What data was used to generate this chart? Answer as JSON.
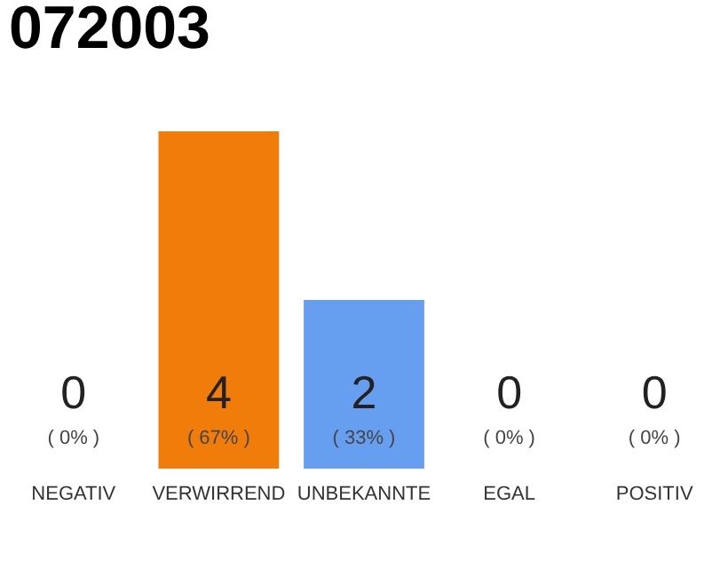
{
  "chart_data": {
    "type": "bar",
    "title": "072003",
    "categories": [
      "NEGATIV",
      "VERWIRREND",
      "UNBEKANNTE",
      "EGAL",
      "POSITIV"
    ],
    "values": [
      0,
      4,
      2,
      0,
      0
    ],
    "colors": [
      "#efefef",
      "#f07d0a",
      "#679ff0",
      "#efefef",
      "#efefef"
    ],
    "value_labels": [
      "0",
      "4",
      "2",
      "0",
      "0"
    ],
    "annotations": [
      {
        "text": "( 0% )",
        "x": "NEGATIV",
        "y": 0
      },
      {
        "text": "( 67% )",
        "x": "VERWIRREND",
        "y": 0
      },
      {
        "text": "( 33% )",
        "x": "UNBEKANNTE",
        "y": 0
      },
      {
        "text": "( 0% )",
        "x": "EGAL",
        "y": 0
      },
      {
        "text": "( 0% )",
        "x": "POSITIV",
        "y": 0
      }
    ],
    "tick_labels": "x"
  }
}
